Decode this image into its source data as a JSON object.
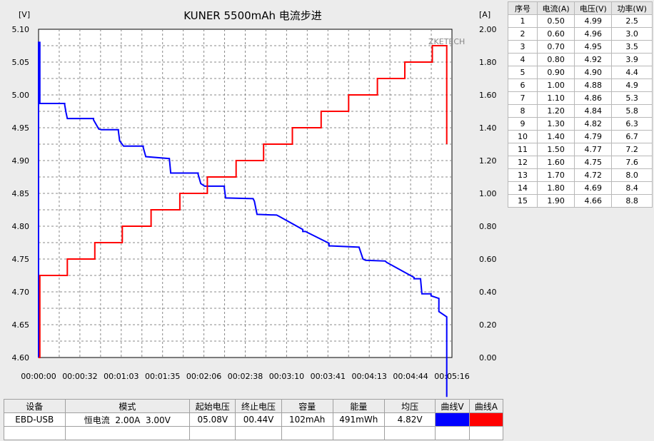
{
  "chart_data": {
    "type": "line",
    "title": "KUNER 5500mAh 电流步进",
    "watermark": "ZKETECH",
    "y_left_unit": "[V]",
    "y_right_unit": "[A]",
    "y_left_range": [
      4.6,
      5.1
    ],
    "y_right_range": [
      0.0,
      2.0
    ],
    "y_left_ticks": [
      "5.10",
      "5.05",
      "5.00",
      "4.95",
      "4.90",
      "4.85",
      "4.80",
      "4.75",
      "4.70",
      "4.65",
      "4.60"
    ],
    "y_right_ticks": [
      "2.00",
      "1.80",
      "1.60",
      "1.40",
      "1.20",
      "1.00",
      "0.80",
      "0.60",
      "0.40",
      "0.20",
      "0.00"
    ],
    "x_ticks": [
      "00:00:00",
      "00:00:32",
      "00:01:03",
      "00:01:35",
      "00:02:06",
      "00:02:38",
      "00:03:10",
      "00:03:41",
      "00:04:13",
      "00:04:44",
      "00:05:16"
    ],
    "x_range_seconds": [
      0,
      316
    ],
    "grid": true,
    "series": [
      {
        "name": "曲线V",
        "color": "#0000ff",
        "axis": "left",
        "x": [
          0,
          0,
          1,
          1,
          20,
          20,
          21,
          22,
          42,
          42,
          46,
          48,
          61,
          61,
          62,
          65,
          80,
          80,
          82,
          100,
          100,
          101,
          122,
          122,
          124,
          127,
          142,
          142,
          143,
          164,
          164,
          165,
          167,
          182,
          182,
          184,
          202,
          202,
          204,
          207,
          222,
          222,
          224,
          245,
          245,
          248,
          250,
          265,
          265,
          266,
          287,
          287,
          292,
          293,
          300,
          300,
          306,
          306,
          312,
          312
        ],
        "y": [
          4.6,
          5.08,
          5.08,
          4.987,
          4.987,
          4.985,
          4.973,
          4.964,
          4.964,
          4.962,
          4.948,
          4.947,
          4.947,
          4.945,
          4.93,
          4.922,
          4.922,
          4.92,
          4.906,
          4.903,
          4.903,
          4.881,
          4.881,
          4.879,
          4.865,
          4.861,
          4.861,
          4.858,
          4.843,
          4.842,
          4.842,
          4.838,
          4.818,
          4.817,
          4.817,
          4.815,
          4.795,
          4.792,
          4.792,
          4.789,
          4.774,
          4.77,
          4.77,
          4.768,
          4.768,
          4.75,
          4.748,
          4.747,
          4.747,
          4.745,
          4.722,
          4.72,
          4.72,
          4.697,
          4.697,
          4.694,
          4.69,
          4.67,
          4.662,
          4.54
        ]
      },
      {
        "name": "曲线A",
        "color": "#ff0000",
        "axis": "right",
        "x": [
          0,
          1,
          1,
          22,
          22,
          43,
          43,
          64,
          64,
          86,
          86,
          108,
          108,
          129,
          129,
          151,
          151,
          172,
          172,
          194,
          194,
          216,
          216,
          237,
          237,
          259,
          259,
          280,
          280,
          301,
          301,
          312,
          312
        ],
        "y": [
          0.0,
          0.0,
          0.5,
          0.5,
          0.6,
          0.6,
          0.7,
          0.7,
          0.8,
          0.8,
          0.9,
          0.9,
          1.0,
          1.0,
          1.1,
          1.1,
          1.2,
          1.2,
          1.3,
          1.3,
          1.4,
          1.4,
          1.5,
          1.5,
          1.6,
          1.6,
          1.7,
          1.7,
          1.8,
          1.8,
          1.9,
          1.9,
          1.3
        ]
      }
    ]
  },
  "table": {
    "headers": [
      "序号",
      "电流(A)",
      "电压(V)",
      "功率(W)"
    ],
    "rows": [
      [
        "1",
        "0.50",
        "4.99",
        "2.5"
      ],
      [
        "2",
        "0.60",
        "4.96",
        "3.0"
      ],
      [
        "3",
        "0.70",
        "4.95",
        "3.5"
      ],
      [
        "4",
        "0.80",
        "4.92",
        "3.9"
      ],
      [
        "5",
        "0.90",
        "4.90",
        "4.4"
      ],
      [
        "6",
        "1.00",
        "4.88",
        "4.9"
      ],
      [
        "7",
        "1.10",
        "4.86",
        "5.3"
      ],
      [
        "8",
        "1.20",
        "4.84",
        "5.8"
      ],
      [
        "9",
        "1.30",
        "4.82",
        "6.3"
      ],
      [
        "10",
        "1.40",
        "4.79",
        "6.7"
      ],
      [
        "11",
        "1.50",
        "4.77",
        "7.2"
      ],
      [
        "12",
        "1.60",
        "4.75",
        "7.6"
      ],
      [
        "13",
        "1.70",
        "4.72",
        "8.0"
      ],
      [
        "14",
        "1.80",
        "4.69",
        "8.4"
      ],
      [
        "15",
        "1.90",
        "4.66",
        "8.8"
      ]
    ]
  },
  "info": {
    "headers": [
      "设备",
      "模式",
      "起始电压",
      "终止电压",
      "容量",
      "能量",
      "均压",
      "曲线V",
      "曲线A"
    ],
    "values": [
      "EBD-USB",
      "恒电流  2.00A  3.00V",
      "05.08V",
      "00.44V",
      "102mAh",
      "491mWh",
      "4.82V"
    ],
    "curve_v_color": "#0000ff",
    "curve_a_color": "#ff0000"
  }
}
